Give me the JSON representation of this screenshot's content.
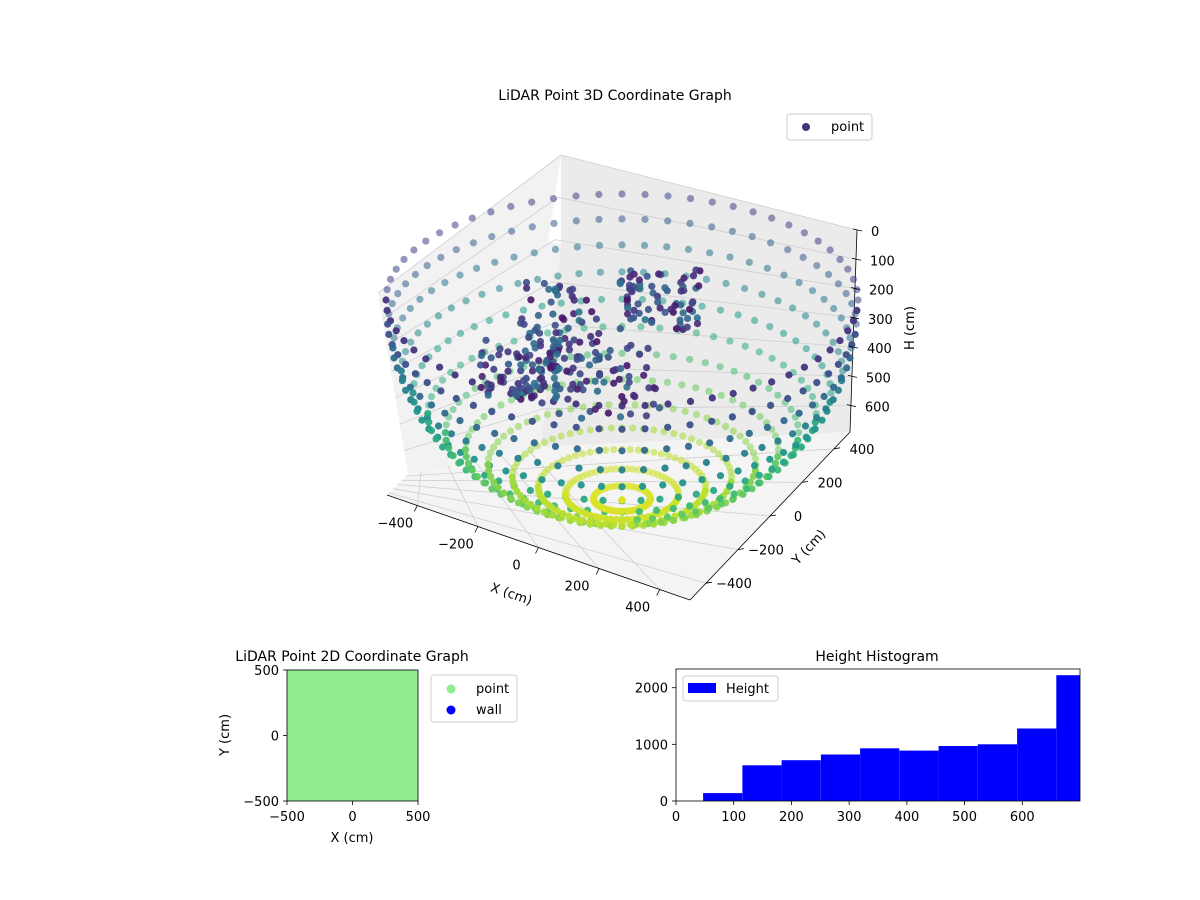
{
  "chart_data": [
    {
      "type": "scatter3d",
      "title": "LiDAR Point 3D Coordinate Graph",
      "xlabel": "X (cm)",
      "ylabel": "Y (cm)",
      "zlabel": "H (cm)",
      "xticks": [
        -400,
        -200,
        0,
        200,
        400
      ],
      "yticks": [
        -400,
        -200,
        0,
        200,
        400
      ],
      "zticks": [
        0,
        100,
        200,
        300,
        400,
        500,
        600
      ],
      "xlim": [
        -500,
        500
      ],
      "ylim": [
        -500,
        500
      ],
      "zlim": [
        0,
        690
      ],
      "z_inverted": true,
      "colormap": "viridis",
      "legend": {
        "position": "top-right",
        "entries": [
          {
            "label": "point",
            "color": "#46337e"
          }
        ]
      },
      "series": [
        {
          "name": "point"
        }
      ],
      "grid": true
    },
    {
      "type": "scatter",
      "title": "LiDAR Point 2D Coordinate Graph",
      "xlabel": "X (cm)",
      "ylabel": "Y (cm)",
      "xticks": [
        -500,
        0,
        500
      ],
      "yticks": [
        -500,
        0,
        500
      ],
      "xlim": [
        -500,
        500
      ],
      "ylim": [
        -500,
        500
      ],
      "fill_color": "#90ee90",
      "legend": {
        "position": "outside-right",
        "entries": [
          {
            "label": "point",
            "color": "#90ee90"
          },
          {
            "label": "wall",
            "color": "#0000ff"
          }
        ]
      }
    },
    {
      "type": "bar",
      "title": "Height Histogram",
      "xticks": [
        0,
        100,
        200,
        300,
        400,
        500,
        600
      ],
      "yticks": [
        0,
        1000,
        2000
      ],
      "xlim": [
        0,
        700
      ],
      "ylim": [
        0,
        2330
      ],
      "color": "#0000ff",
      "legend": {
        "position": "top-left",
        "entries": [
          {
            "label": "Height",
            "color": "#0000ff"
          }
        ]
      },
      "bins": [
        {
          "x0": 47,
          "x1": 115,
          "value": 140
        },
        {
          "x0": 115,
          "x1": 183,
          "value": 630
        },
        {
          "x0": 183,
          "x1": 251,
          "value": 720
        },
        {
          "x0": 251,
          "x1": 319,
          "value": 820
        },
        {
          "x0": 319,
          "x1": 387,
          "value": 930
        },
        {
          "x0": 387,
          "x1": 455,
          "value": 890
        },
        {
          "x0": 455,
          "x1": 523,
          "value": 970
        },
        {
          "x0": 523,
          "x1": 591,
          "value": 1000
        },
        {
          "x0": 591,
          "x1": 659,
          "value": 1280
        },
        {
          "x0": 659,
          "x1": 700,
          "value": 2220
        }
      ]
    }
  ]
}
